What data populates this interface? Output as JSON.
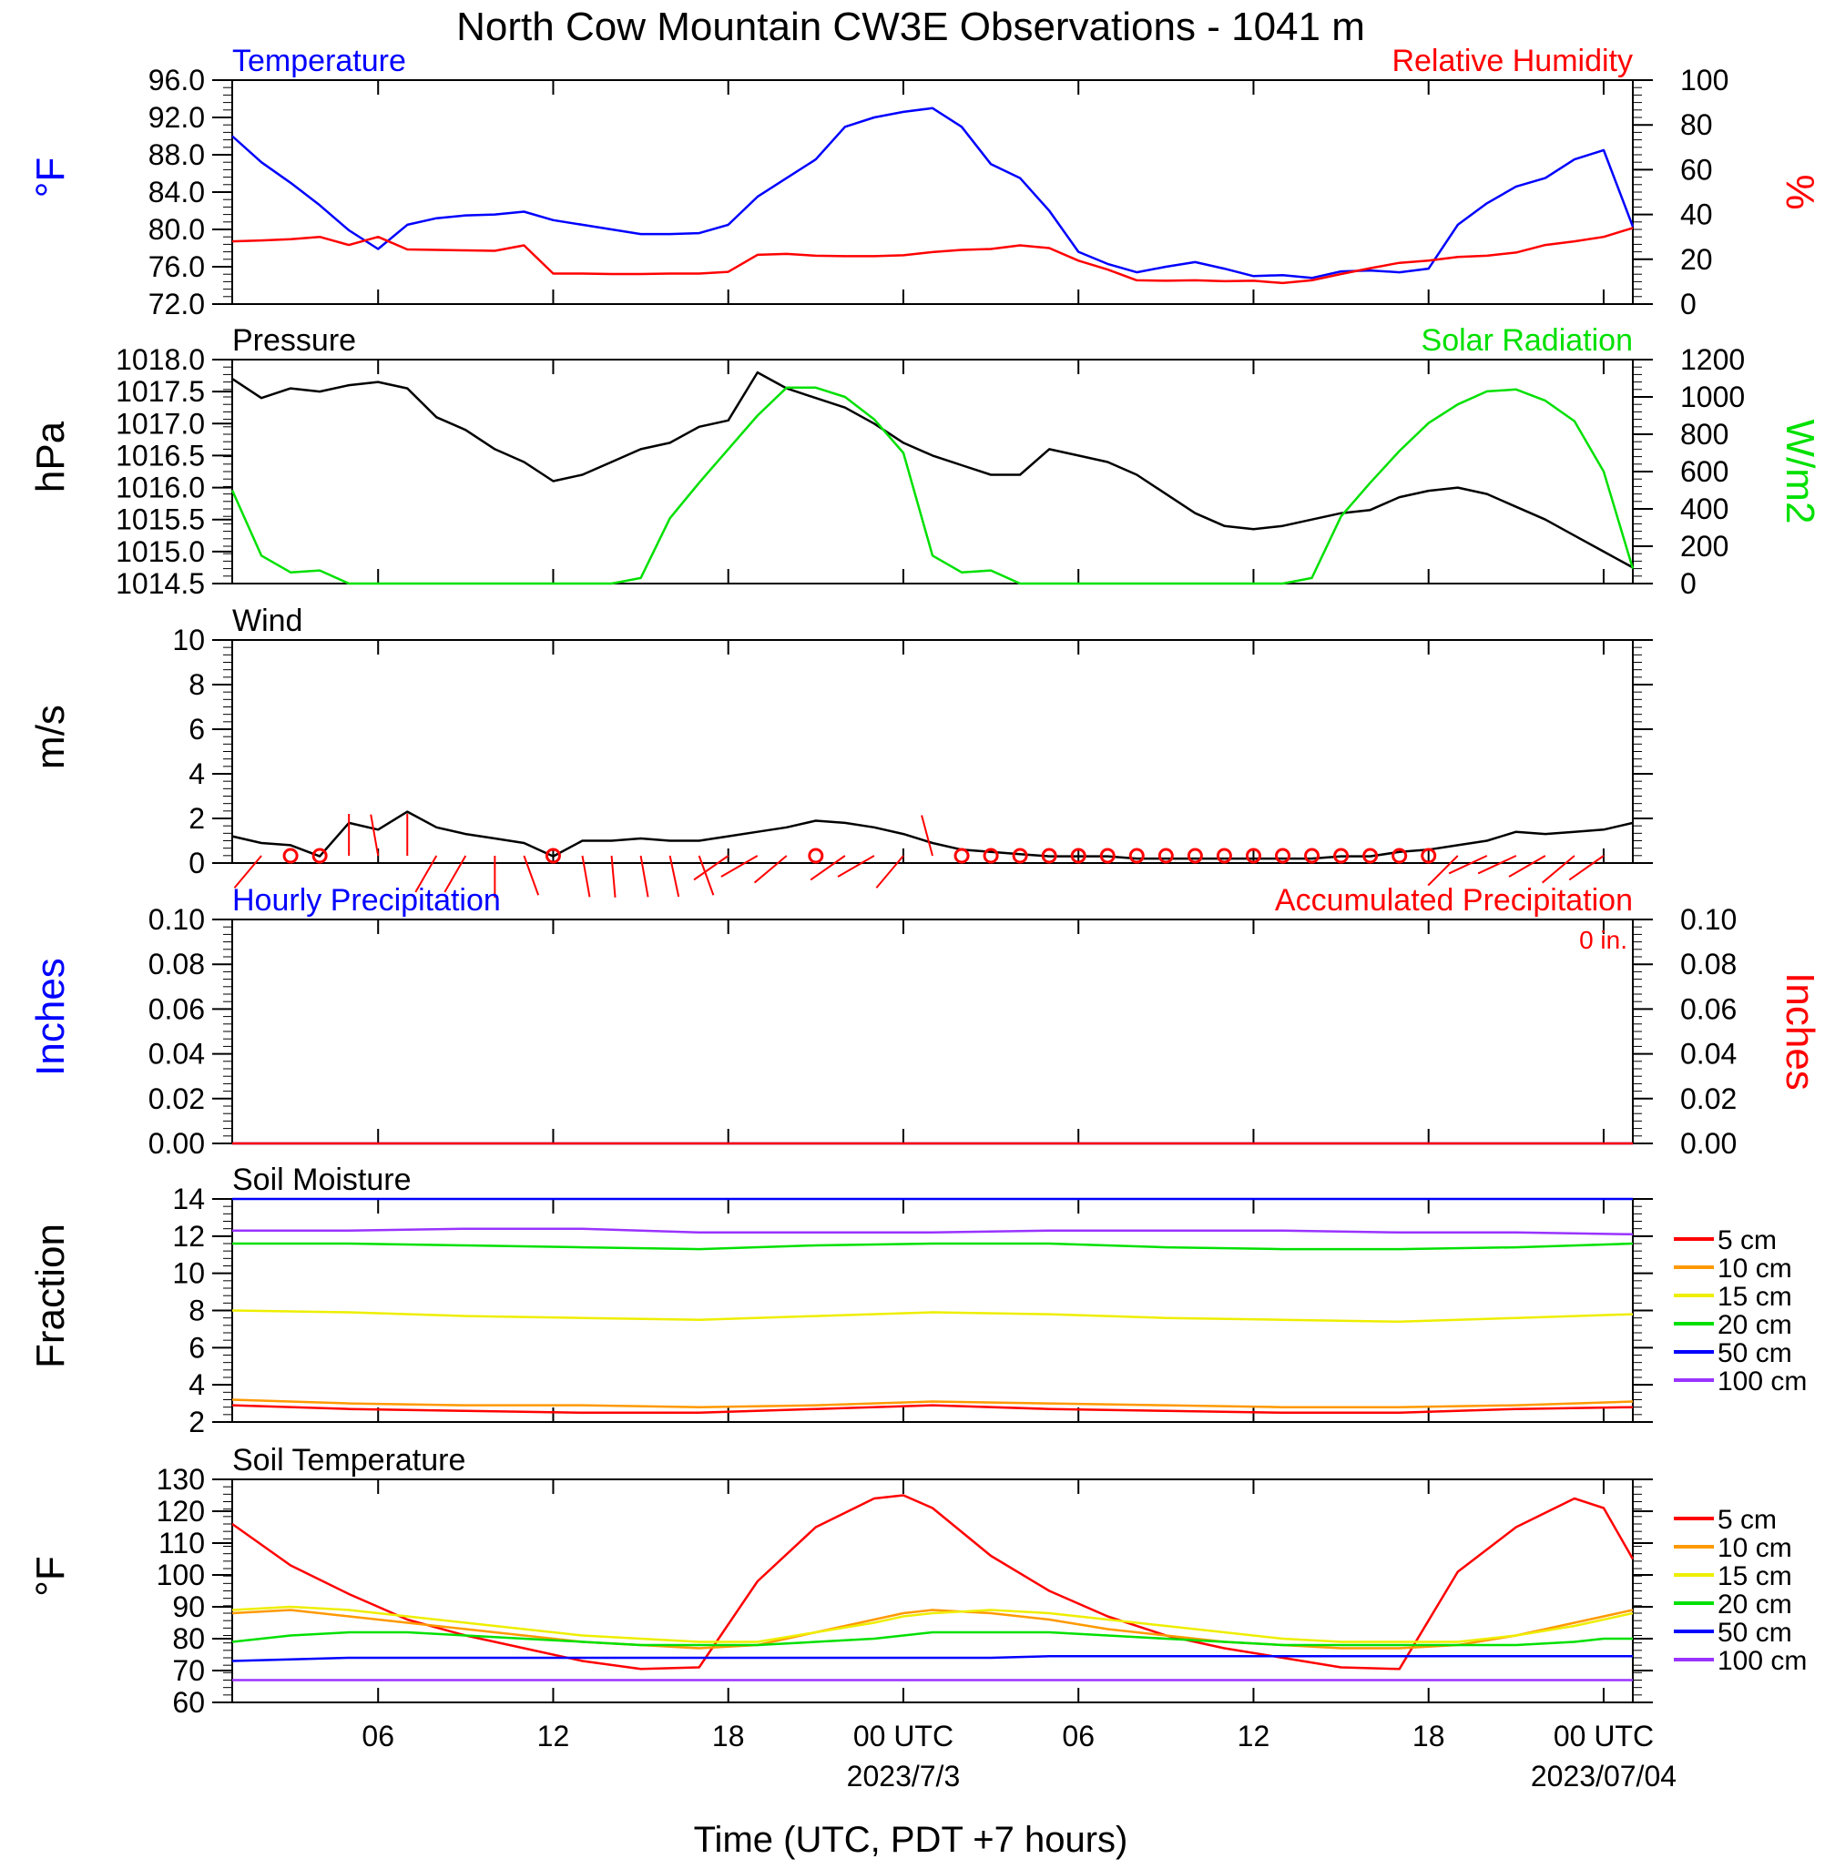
{
  "title": "North Cow Mountain CW3E Observations - 1041 m",
  "xaxis": {
    "label": "Time (UTC, PDT +7 hours)",
    "ticks": [
      "06",
      "12",
      "18",
      "00 UTC",
      "06",
      "12",
      "18",
      "00 UTC"
    ],
    "dates": [
      "2023/7/3",
      "2023/07/04"
    ]
  },
  "colors": {
    "blue": "#0000ff",
    "red": "#ff0000",
    "green": "#00e000",
    "black": "#000000",
    "orange": "#ff9900",
    "yellow": "#eeee00",
    "purple": "#9933ff"
  },
  "chart_data": [
    {
      "type": "line",
      "title_left": "Temperature",
      "title_right": "Relative Humidity",
      "ylabel_left": "°F",
      "ylabel_right": "%",
      "ylim_left": [
        72,
        96
      ],
      "ylim_right": [
        0,
        100
      ],
      "yticks_left": [
        "72.0",
        "76.0",
        "80.0",
        "84.0",
        "88.0",
        "92.0",
        "96.0"
      ],
      "yticks_right": [
        "0",
        "20",
        "40",
        "60",
        "80",
        "100"
      ],
      "x_hours": [
        1,
        2,
        3,
        4,
        5,
        6,
        7,
        8,
        9,
        10,
        11,
        12,
        13,
        14,
        15,
        16,
        17,
        18,
        19,
        20,
        21,
        22,
        23,
        24,
        25,
        26,
        27,
        28,
        29,
        30,
        31,
        32,
        33,
        34,
        35,
        36,
        37,
        38,
        39,
        40,
        41,
        42,
        43,
        44,
        45,
        46,
        47,
        48,
        49
      ],
      "series": [
        {
          "name": "Temperature",
          "axis": "left",
          "color": "blue",
          "values": [
            90.0,
            87.2,
            85.0,
            82.6,
            79.9,
            77.9,
            80.5,
            81.2,
            81.5,
            81.6,
            81.9,
            81.0,
            80.5,
            80.0,
            79.5,
            79.5,
            79.6,
            80.5,
            83.5,
            85.5,
            87.5,
            91.0,
            92.0,
            92.6,
            93.0,
            91.0,
            87.0,
            85.5,
            82.0,
            77.6,
            76.3,
            75.4,
            76.0,
            76.5,
            75.8,
            75.0,
            75.1,
            74.8,
            75.5,
            75.6,
            75.4,
            75.8,
            80.5,
            82.8,
            84.6,
            85.5,
            87.5,
            88.5,
            80.3
          ]
        },
        {
          "name": "Relative Humidity",
          "axis": "right",
          "color": "red",
          "values": [
            28.0,
            28.4,
            29.0,
            30.0,
            26.4,
            30.0,
            24.4,
            24.2,
            24.0,
            23.8,
            26.2,
            13.6,
            13.6,
            13.4,
            13.4,
            13.6,
            13.6,
            14.4,
            22.0,
            22.4,
            21.6,
            21.4,
            21.4,
            21.8,
            23.2,
            24.2,
            24.6,
            26.2,
            25.0,
            19.4,
            15.4,
            10.6,
            10.4,
            10.6,
            10.2,
            10.4,
            9.4,
            10.6,
            13.4,
            16.0,
            18.4,
            19.4,
            21.0,
            21.6,
            23.0,
            26.4,
            28.0,
            30.0,
            34.0
          ]
        }
      ]
    },
    {
      "type": "line",
      "title_left": "Pressure",
      "title_right": "Solar Radiation",
      "ylabel_left": "hPa",
      "ylabel_right": "W/m2",
      "ylim_left": [
        1014.5,
        1018.0
      ],
      "ylim_right": [
        0,
        1200
      ],
      "yticks_left": [
        "1014.5",
        "1015.0",
        "1015.5",
        "1016.0",
        "1016.5",
        "1017.0",
        "1017.5",
        "1018.0"
      ],
      "yticks_right": [
        "0",
        "200",
        "400",
        "600",
        "800",
        "1000",
        "1200"
      ],
      "x_hours": [
        1,
        2,
        3,
        4,
        5,
        6,
        7,
        8,
        9,
        10,
        11,
        12,
        13,
        14,
        15,
        16,
        17,
        18,
        19,
        20,
        21,
        22,
        23,
        24,
        25,
        26,
        27,
        28,
        29,
        30,
        31,
        32,
        33,
        34,
        35,
        36,
        37,
        38,
        39,
        40,
        41,
        42,
        43,
        44,
        45,
        46,
        47,
        48,
        49
      ],
      "series": [
        {
          "name": "Pressure",
          "axis": "left",
          "color": "black",
          "values": [
            1017.7,
            1017.4,
            1017.55,
            1017.5,
            1017.6,
            1017.65,
            1017.55,
            1017.1,
            1016.9,
            1016.6,
            1016.4,
            1016.1,
            1016.2,
            1016.4,
            1016.6,
            1016.7,
            1016.95,
            1017.05,
            1017.8,
            1017.55,
            1017.4,
            1017.25,
            1017.0,
            1016.7,
            1016.5,
            1016.35,
            1016.2,
            1016.2,
            1016.6,
            1016.5,
            1016.4,
            1016.2,
            1015.9,
            1015.6,
            1015.4,
            1015.35,
            1015.4,
            1015.5,
            1015.6,
            1015.65,
            1015.85,
            1015.95,
            1016.0,
            1015.9,
            1015.7,
            1015.5,
            1015.25,
            1015.0,
            1014.75
          ]
        },
        {
          "name": "Solar Radiation",
          "axis": "right",
          "color": "green",
          "values": [
            500,
            150,
            60,
            70,
            0,
            0,
            0,
            0,
            0,
            0,
            0,
            0,
            0,
            0,
            30,
            350,
            540,
            720,
            900,
            1050,
            1050,
            1000,
            880,
            700,
            150,
            60,
            70,
            0,
            0,
            0,
            0,
            0,
            0,
            0,
            0,
            0,
            0,
            30,
            360,
            540,
            710,
            860,
            960,
            1030,
            1040,
            980,
            870,
            600,
            80
          ]
        }
      ]
    },
    {
      "type": "line",
      "title_left": "Wind",
      "ylabel_left": "m/s",
      "ylim_left": [
        0,
        10
      ],
      "yticks_left": [
        "0",
        "2",
        "4",
        "6",
        "8",
        "10"
      ],
      "x_hours": [
        1,
        2,
        3,
        4,
        5,
        6,
        7,
        8,
        9,
        10,
        11,
        12,
        13,
        14,
        15,
        16,
        17,
        18,
        19,
        20,
        21,
        22,
        23,
        24,
        25,
        26,
        27,
        28,
        29,
        30,
        31,
        32,
        33,
        34,
        35,
        36,
        37,
        38,
        39,
        40,
        41,
        42,
        43,
        44,
        45,
        46,
        47,
        48,
        49
      ],
      "series": [
        {
          "name": "Wind speed",
          "axis": "left",
          "color": "black",
          "values": [
            1.2,
            0.9,
            0.8,
            0.3,
            1.8,
            1.5,
            2.3,
            1.6,
            1.3,
            1.1,
            0.9,
            0.3,
            1.0,
            1.0,
            1.1,
            1.0,
            1.0,
            1.2,
            1.4,
            1.6,
            1.9,
            1.8,
            1.6,
            1.3,
            0.9,
            0.6,
            0.5,
            0.4,
            0.3,
            0.3,
            0.3,
            0.2,
            0.2,
            0.2,
            0.2,
            0.2,
            0.2,
            0.2,
            0.3,
            0.3,
            0.5,
            0.6,
            0.8,
            1.0,
            1.4,
            1.3,
            1.4,
            1.5,
            1.8
          ]
        }
      ],
      "barbs_hours": [
        2,
        3,
        4,
        5,
        6,
        7,
        8,
        9,
        10,
        11,
        12,
        13,
        14,
        15,
        16,
        17,
        18,
        19,
        20,
        21,
        22,
        23,
        24,
        25,
        26,
        27,
        28,
        29,
        30,
        31,
        32,
        33,
        34,
        35,
        36,
        37,
        38,
        39,
        40,
        41,
        42,
        43,
        44,
        45,
        46,
        47,
        48
      ],
      "barb_angles_deg": [
        220,
        0,
        0,
        0,
        350,
        0,
        210,
        210,
        180,
        160,
        0,
        170,
        175,
        170,
        168,
        160,
        235,
        240,
        230,
        0,
        235,
        240,
        220,
        345,
        0,
        0,
        0,
        0,
        0,
        0,
        0,
        0,
        0,
        0,
        0,
        0,
        0,
        0,
        0,
        0,
        0,
        225,
        245,
        245,
        240,
        230,
        235
      ],
      "barb_calm": [
        false,
        true,
        true,
        false,
        false,
        false,
        false,
        false,
        false,
        false,
        true,
        false,
        false,
        false,
        false,
        false,
        false,
        false,
        false,
        true,
        false,
        false,
        false,
        false,
        true,
        true,
        true,
        true,
        true,
        true,
        true,
        true,
        true,
        true,
        true,
        true,
        true,
        true,
        true,
        true,
        true,
        false,
        false,
        false,
        false,
        false,
        false
      ]
    },
    {
      "type": "line",
      "title_left": "Hourly Precipitation",
      "title_right": "Accumulated Precipitation",
      "annotation": "0 in.",
      "ylabel_left": "Inches",
      "ylabel_right": "Inches",
      "ylim_left": [
        0,
        0.1
      ],
      "ylim_right": [
        0,
        0.1
      ],
      "yticks_left": [
        "0.00",
        "0.02",
        "0.04",
        "0.06",
        "0.08",
        "0.10"
      ],
      "yticks_right": [
        "0.00",
        "0.02",
        "0.04",
        "0.06",
        "0.08",
        "0.10"
      ],
      "x_hours": [
        1,
        49
      ],
      "series": [
        {
          "name": "Hourly Precipitation",
          "axis": "left",
          "color": "blue",
          "values": [
            0,
            0
          ]
        },
        {
          "name": "Accumulated Precipitation",
          "axis": "right",
          "color": "red",
          "values": [
            0,
            0
          ]
        }
      ]
    },
    {
      "type": "line",
      "title_left": "Soil Moisture",
      "ylabel_left": "Fraction",
      "ylim_left": [
        2,
        14
      ],
      "yticks_left": [
        "2",
        "4",
        "6",
        "8",
        "10",
        "12",
        "14"
      ],
      "x_hours": [
        1,
        5,
        9,
        13,
        17,
        21,
        25,
        29,
        33,
        37,
        41,
        45,
        49
      ],
      "legend": [
        "5 cm",
        "10 cm",
        "15 cm",
        "20 cm",
        "50 cm",
        "100 cm"
      ],
      "series": [
        {
          "name": "5 cm",
          "color": "red",
          "values": [
            2.9,
            2.7,
            2.6,
            2.5,
            2.5,
            2.7,
            2.9,
            2.7,
            2.6,
            2.5,
            2.5,
            2.7,
            2.8
          ]
        },
        {
          "name": "10 cm",
          "color": "orange",
          "values": [
            3.2,
            3.0,
            2.9,
            2.9,
            2.8,
            2.9,
            3.1,
            3.0,
            2.9,
            2.8,
            2.8,
            2.9,
            3.1
          ]
        },
        {
          "name": "15 cm",
          "color": "yellow",
          "values": [
            8.0,
            7.9,
            7.7,
            7.6,
            7.5,
            7.7,
            7.9,
            7.8,
            7.6,
            7.5,
            7.4,
            7.6,
            7.8
          ]
        },
        {
          "name": "20 cm",
          "color": "green",
          "values": [
            11.6,
            11.6,
            11.5,
            11.4,
            11.3,
            11.5,
            11.6,
            11.6,
            11.4,
            11.3,
            11.3,
            11.4,
            11.6
          ]
        },
        {
          "name": "50 cm",
          "color": "blue",
          "values": [
            14.0,
            14.0,
            14.0,
            14.0,
            14.0,
            14.0,
            14.0,
            14.0,
            14.0,
            14.0,
            14.0,
            14.0,
            14.0
          ]
        },
        {
          "name": "100 cm",
          "color": "purple",
          "values": [
            12.3,
            12.3,
            12.4,
            12.4,
            12.2,
            12.2,
            12.2,
            12.3,
            12.3,
            12.3,
            12.2,
            12.2,
            12.1
          ]
        }
      ]
    },
    {
      "type": "line",
      "title_left": "Soil Temperature",
      "ylabel_left": "°F",
      "ylim_left": [
        60,
        130
      ],
      "yticks_left": [
        "60",
        "70",
        "80",
        "90",
        "100",
        "110",
        "120",
        "130"
      ],
      "x_hours": [
        1,
        3,
        5,
        7,
        9,
        11,
        13,
        15,
        17,
        19,
        21,
        23,
        24,
        25,
        27,
        29,
        31,
        33,
        35,
        37,
        39,
        41,
        43,
        45,
        47,
        48,
        49
      ],
      "legend": [
        "5 cm",
        "10 cm",
        "15 cm",
        "20 cm",
        "50 cm",
        "100 cm"
      ],
      "series": [
        {
          "name": "5 cm",
          "color": "red",
          "values": [
            116,
            103,
            94,
            86,
            81,
            77,
            73,
            70.5,
            71,
            98,
            115,
            124,
            125,
            121,
            106,
            95,
            87,
            81,
            77,
            74,
            71,
            70.5,
            101,
            115,
            124,
            121,
            105
          ]
        },
        {
          "name": "10 cm",
          "color": "orange",
          "values": [
            88,
            89,
            87,
            85,
            83,
            81,
            79,
            78,
            77,
            78,
            82,
            86,
            88,
            89,
            88,
            86,
            83,
            81,
            79,
            78,
            77,
            77,
            78,
            81,
            85,
            87,
            89
          ]
        },
        {
          "name": "15 cm",
          "color": "yellow",
          "values": [
            89,
            90,
            89,
            87,
            85,
            83,
            81,
            80,
            79,
            79,
            82,
            85,
            87,
            88,
            89,
            88,
            86,
            84,
            82,
            80,
            79,
            79,
            79,
            81,
            84,
            86,
            88
          ]
        },
        {
          "name": "20 cm",
          "color": "green",
          "values": [
            79,
            81,
            82,
            82,
            81,
            80,
            79,
            78,
            78,
            78,
            79,
            80,
            81,
            82,
            82,
            82,
            81,
            80,
            79,
            78,
            78,
            78,
            78,
            78,
            79,
            80,
            80
          ]
        },
        {
          "name": "50 cm",
          "color": "blue",
          "values": [
            73,
            73.5,
            74,
            74,
            74,
            74,
            74,
            74,
            74,
            74,
            74,
            74,
            74,
            74,
            74,
            74.5,
            74.5,
            74.5,
            74.5,
            74.5,
            74.5,
            74.5,
            74.5,
            74.5,
            74.5,
            74.5,
            74.5
          ]
        },
        {
          "name": "100 cm",
          "color": "purple",
          "values": [
            67,
            67,
            67,
            67,
            67,
            67,
            67,
            67,
            67,
            67,
            67,
            67,
            67,
            67,
            67,
            67,
            67,
            67,
            67,
            67,
            67,
            67,
            67,
            67,
            67,
            67,
            67
          ]
        }
      ]
    }
  ]
}
